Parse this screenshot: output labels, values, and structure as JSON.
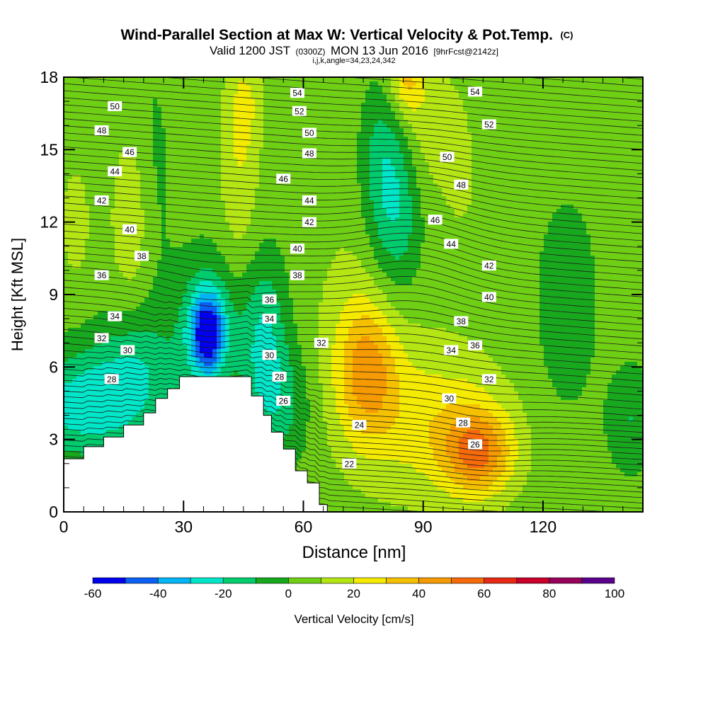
{
  "chart_data": {
    "type": "heatmap",
    "title": "Wind-Parallel Section at Max W: Vertical Velocity & Pot.Temp.",
    "title_suffix": "(C)",
    "subtitle_parts": [
      "Valid 1200 JST",
      "(0300Z)",
      "MON 13 Jun 2016",
      "[9hrFcst@2142z]"
    ],
    "subtitle2": "i,j,k,angle=34,23,24,342",
    "xlabel": "Distance [nm]",
    "ylabel": "Height [Kft MSL]",
    "xlim": [
      0,
      145
    ],
    "ylim": [
      0,
      18
    ],
    "x_ticks": [
      0,
      30,
      60,
      90,
      120
    ],
    "x_tick_labels": [
      "0",
      "30",
      "60",
      "90",
      "120"
    ],
    "y_ticks": [
      0,
      3,
      6,
      9,
      12,
      15,
      18
    ],
    "y_tick_labels": [
      "0",
      "3",
      "6",
      "9",
      "12",
      "15",
      "18"
    ],
    "colorbar": {
      "label": "Vertical Velocity [cm/s]",
      "bounds": [
        -60,
        -50,
        -40,
        -30,
        -20,
        -10,
        0,
        10,
        20,
        30,
        40,
        50,
        60,
        70,
        80,
        90,
        100
      ],
      "tick_values": [
        -60,
        -40,
        -20,
        0,
        20,
        40,
        60,
        80,
        100
      ],
      "tick_labels": [
        "-60",
        "-40",
        "-20",
        "0",
        "20",
        "40",
        "60",
        "80",
        "100"
      ],
      "colors": [
        "#0000ee",
        "#0a5ff5",
        "#00b4f5",
        "#00e6c8",
        "#00cc6e",
        "#18a81e",
        "#6fcf14",
        "#b4e614",
        "#f5eb00",
        "#f5c000",
        "#f59a00",
        "#f56a0a",
        "#e62814",
        "#c8002a",
        "#96005a",
        "#5a008c"
      ]
    },
    "terrain": [
      [
        0,
        2.2
      ],
      [
        5,
        2.2
      ],
      [
        5,
        2.7
      ],
      [
        10,
        2.7
      ],
      [
        10,
        3.1
      ],
      [
        15,
        3.1
      ],
      [
        15,
        3.6
      ],
      [
        20,
        3.6
      ],
      [
        20,
        4.1
      ],
      [
        23,
        4.1
      ],
      [
        23,
        4.7
      ],
      [
        26,
        4.7
      ],
      [
        26,
        5.1
      ],
      [
        29,
        5.1
      ],
      [
        29,
        5.6
      ],
      [
        47,
        5.6
      ],
      [
        47,
        4.8
      ],
      [
        50,
        4.8
      ],
      [
        50,
        4.0
      ],
      [
        52,
        4.0
      ],
      [
        52,
        3.3
      ],
      [
        55,
        3.3
      ],
      [
        55,
        2.6
      ],
      [
        58,
        2.6
      ],
      [
        58,
        1.7
      ],
      [
        61,
        1.7
      ],
      [
        61,
        1.2
      ],
      [
        64,
        1.2
      ],
      [
        64,
        0.3
      ],
      [
        66,
        0.3
      ],
      [
        66,
        0
      ]
    ],
    "w_field": [
      {
        "x": 36,
        "y": 7.4,
        "sx": 3.0,
        "sy": 1.2,
        "w": -48
      },
      {
        "x": 36,
        "y": 7.6,
        "sx": 5.5,
        "sy": 2.1,
        "w": -22
      },
      {
        "x": 50,
        "y": 7.0,
        "sx": 4.0,
        "sy": 2.5,
        "w": -25
      },
      {
        "x": 55,
        "y": 4.5,
        "sx": 5.0,
        "sy": 1.8,
        "w": -16
      },
      {
        "x": 6,
        "y": 4.4,
        "sx": 12.0,
        "sy": 1.6,
        "w": -30
      },
      {
        "x": 18,
        "y": 6.2,
        "sx": 7.0,
        "sy": 1.6,
        "w": -16
      },
      {
        "x": 83,
        "y": 13.0,
        "sx": 4.5,
        "sy": 2.8,
        "w": -26
      },
      {
        "x": 79,
        "y": 15.0,
        "sx": 4.0,
        "sy": 2.0,
        "w": -12
      },
      {
        "x": 126,
        "y": 8.6,
        "sx": 5.0,
        "sy": 2.8,
        "w": -12
      },
      {
        "x": 142,
        "y": 3.8,
        "sx": 4.0,
        "sy": 1.5,
        "w": -14
      },
      {
        "x": 22,
        "y": 13.5,
        "sx": 4.0,
        "sy": 4.0,
        "w": -7
      },
      {
        "x": 104,
        "y": 2.4,
        "sx": 6.0,
        "sy": 1.2,
        "w": 36
      },
      {
        "x": 100,
        "y": 3.4,
        "sx": 9.0,
        "sy": 2.0,
        "w": 20
      },
      {
        "x": 76,
        "y": 5.8,
        "sx": 5.0,
        "sy": 2.0,
        "w": 28
      },
      {
        "x": 74,
        "y": 6.2,
        "sx": 8.0,
        "sy": 3.0,
        "w": 14
      },
      {
        "x": 86,
        "y": 4.0,
        "sx": 8.0,
        "sy": 2.5,
        "w": 12
      },
      {
        "x": 17,
        "y": 12.2,
        "sx": 3.5,
        "sy": 2.5,
        "w": 16
      },
      {
        "x": 44,
        "y": 14.5,
        "sx": 3.5,
        "sy": 3.2,
        "w": 15
      },
      {
        "x": 46,
        "y": 17.0,
        "sx": 3.0,
        "sy": 1.4,
        "w": 10
      },
      {
        "x": 86,
        "y": 17.8,
        "sx": 3.0,
        "sy": 0.9,
        "w": 24
      },
      {
        "x": 88,
        "y": 16.0,
        "sx": 6.0,
        "sy": 2.0,
        "w": 14
      },
      {
        "x": 100,
        "y": 13.5,
        "sx": 6.0,
        "sy": 4.0,
        "w": 6
      },
      {
        "x": 3,
        "y": 12.0,
        "sx": 3.0,
        "sy": 2.0,
        "w": 10
      },
      {
        "x": 68,
        "y": 14.0,
        "sx": 6.0,
        "sy": 3.0,
        "w": 4
      }
    ],
    "w_background": 4,
    "theta_contours": {
      "interval": 0.5,
      "labeled_levels": [
        22,
        24,
        26,
        28,
        30,
        32,
        34,
        36,
        38,
        40,
        42,
        44,
        46,
        48,
        50,
        52,
        54
      ]
    },
    "theta_labels": [
      {
        "text": "54",
        "x": 58.5,
        "y": 17.35
      },
      {
        "text": "52",
        "x": 59.0,
        "y": 16.6
      },
      {
        "text": "50",
        "x": 61.5,
        "y": 15.7
      },
      {
        "text": "48",
        "x": 61.5,
        "y": 14.85
      },
      {
        "text": "46",
        "x": 55.0,
        "y": 13.8
      },
      {
        "text": "44",
        "x": 61.5,
        "y": 12.9
      },
      {
        "text": "42",
        "x": 61.5,
        "y": 12.0
      },
      {
        "text": "40",
        "x": 58.5,
        "y": 10.9
      },
      {
        "text": "38",
        "x": 58.5,
        "y": 9.8
      },
      {
        "text": "36",
        "x": 51.5,
        "y": 8.8
      },
      {
        "text": "34",
        "x": 51.5,
        "y": 8.0
      },
      {
        "text": "32",
        "x": 64.5,
        "y": 7.0
      },
      {
        "text": "30",
        "x": 51.5,
        "y": 6.5
      },
      {
        "text": "28",
        "x": 54.0,
        "y": 5.6
      },
      {
        "text": "26",
        "x": 55.0,
        "y": 4.6
      },
      {
        "text": "24",
        "x": 74.0,
        "y": 3.6
      },
      {
        "text": "22",
        "x": 71.5,
        "y": 2.0
      },
      {
        "text": "50",
        "x": 12.8,
        "y": 16.8
      },
      {
        "text": "48",
        "x": 9.5,
        "y": 15.8
      },
      {
        "text": "46",
        "x": 16.5,
        "y": 14.9
      },
      {
        "text": "44",
        "x": 12.8,
        "y": 14.1
      },
      {
        "text": "42",
        "x": 9.5,
        "y": 12.9
      },
      {
        "text": "40",
        "x": 16.5,
        "y": 11.7
      },
      {
        "text": "38",
        "x": 19.5,
        "y": 10.6
      },
      {
        "text": "36",
        "x": 9.5,
        "y": 9.8
      },
      {
        "text": "34",
        "x": 12.8,
        "y": 8.1
      },
      {
        "text": "32",
        "x": 9.5,
        "y": 7.2
      },
      {
        "text": "30",
        "x": 16.0,
        "y": 6.7
      },
      {
        "text": "28",
        "x": 12.0,
        "y": 5.5
      },
      {
        "text": "54",
        "x": 103.0,
        "y": 17.4
      },
      {
        "text": "52",
        "x": 106.5,
        "y": 16.05
      },
      {
        "text": "50",
        "x": 96.0,
        "y": 14.7
      },
      {
        "text": "48",
        "x": 99.5,
        "y": 13.55
      },
      {
        "text": "46",
        "x": 93.0,
        "y": 12.1
      },
      {
        "text": "44",
        "x": 97.0,
        "y": 11.1
      },
      {
        "text": "42",
        "x": 106.5,
        "y": 10.2
      },
      {
        "text": "40",
        "x": 106.5,
        "y": 8.9
      },
      {
        "text": "38",
        "x": 99.5,
        "y": 7.9
      },
      {
        "text": "36",
        "x": 103.0,
        "y": 6.9
      },
      {
        "text": "34",
        "x": 97.0,
        "y": 6.7
      },
      {
        "text": "32",
        "x": 106.5,
        "y": 5.5
      },
      {
        "text": "30",
        "x": 96.5,
        "y": 4.7
      },
      {
        "text": "28",
        "x": 100.0,
        "y": 3.7
      },
      {
        "text": "26",
        "x": 103.0,
        "y": 2.8
      }
    ]
  }
}
